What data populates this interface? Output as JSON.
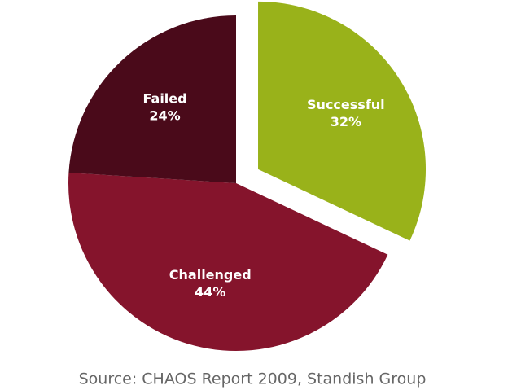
{
  "chart_data": {
    "type": "pie",
    "categories": [
      "Successful",
      "Challenged",
      "Failed"
    ],
    "values": [
      32,
      44,
      24
    ],
    "value_labels": [
      "32%",
      "44%",
      "24%"
    ],
    "colors": [
      "#99b21a",
      "#85142c",
      "#4a0a1a"
    ],
    "annotation": "Source: CHAOS Report 2009, Standish Group"
  }
}
